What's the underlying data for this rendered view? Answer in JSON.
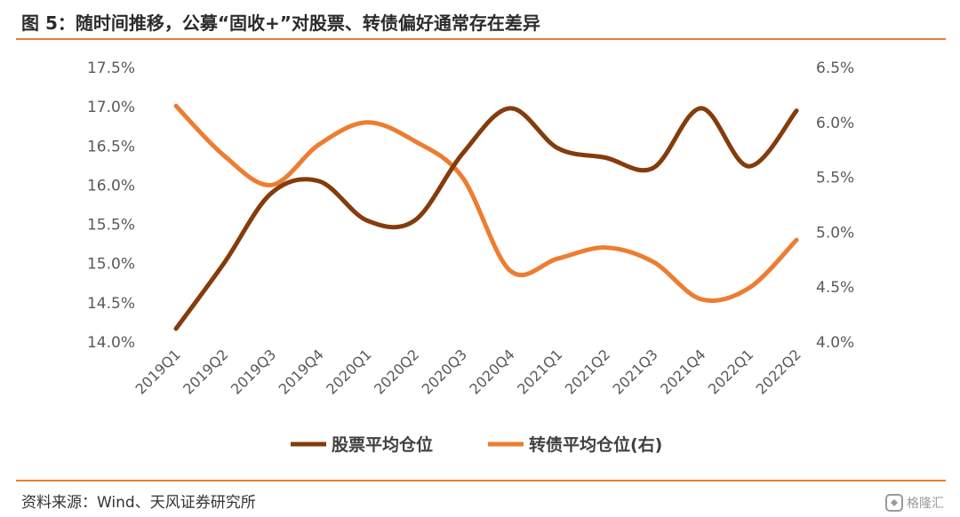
{
  "title": "图 5：随时间推移，公募“固收+”对股票、转债偏好通常存在差异",
  "source": "资料来源：Wind、天风证券研究所",
  "watermark": "格隆汇",
  "colors": {
    "accent": "#ed7d31",
    "stock": "#843c0c",
    "cb": "#ed7d31"
  },
  "chart_data": {
    "type": "line",
    "categories": [
      "2019Q1",
      "2019Q2",
      "2019Q3",
      "2019Q4",
      "2020Q1",
      "2020Q2",
      "2020Q3",
      "2020Q4",
      "2021Q1",
      "2021Q2",
      "2021Q3",
      "2021Q4",
      "2022Q1",
      "2022Q2"
    ],
    "left_axis": {
      "min": 14.0,
      "max": 17.5,
      "ticks": [
        "14.0%",
        "14.5%",
        "15.0%",
        "15.5%",
        "16.0%",
        "16.5%",
        "17.0%",
        "17.5%"
      ]
    },
    "right_axis": {
      "min": 4.0,
      "max": 6.5,
      "ticks": [
        "4.0%",
        "4.5%",
        "5.0%",
        "5.5%",
        "6.0%",
        "6.5%"
      ]
    },
    "series": [
      {
        "name": "股票平均仓位",
        "axis": "left",
        "color": "#843c0c",
        "values": [
          14.17,
          15.0,
          15.9,
          16.05,
          15.55,
          15.55,
          16.4,
          16.98,
          16.47,
          16.35,
          16.22,
          16.98,
          16.24,
          16.95
        ]
      },
      {
        "name": "转债平均仓位(右)",
        "axis": "right",
        "color": "#ed7d31",
        "values": [
          6.15,
          5.7,
          5.43,
          5.8,
          6.0,
          5.83,
          5.5,
          4.65,
          4.76,
          4.86,
          4.73,
          4.39,
          4.49,
          4.93
        ]
      }
    ],
    "legend_position": "bottom",
    "grid": false
  }
}
